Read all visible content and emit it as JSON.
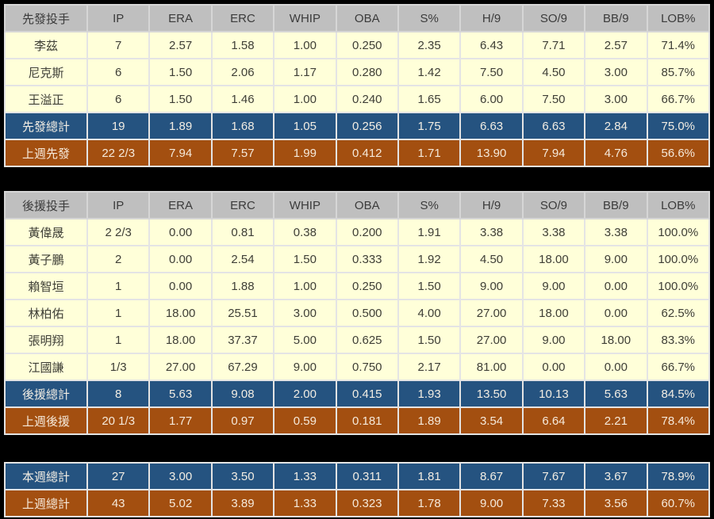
{
  "colors": {
    "page_background": "#000000",
    "header_background": "#bfbfbf",
    "row_background": "#ffffd9",
    "total_blue": "#255380",
    "total_brown": "#a34f10",
    "grid_line": "#e4e4e4"
  },
  "columns": [
    "IP",
    "ERA",
    "ERC",
    "WHIP",
    "OBA",
    "S%",
    "H/9",
    "SO/9",
    "BB/9",
    "LOB%"
  ],
  "tables": [
    {
      "name": "starters-table",
      "header_label": "先發投手",
      "has_header": true,
      "rows": [
        {
          "label": "李茲",
          "style": "normal",
          "values": [
            "7",
            "2.57",
            "1.58",
            "1.00",
            "0.250",
            "2.35",
            "6.43",
            "7.71",
            "2.57",
            "71.4%"
          ]
        },
        {
          "label": "尼克斯",
          "style": "normal",
          "values": [
            "6",
            "1.50",
            "2.06",
            "1.17",
            "0.280",
            "1.42",
            "7.50",
            "4.50",
            "3.00",
            "85.7%"
          ]
        },
        {
          "label": "王溢正",
          "style": "normal",
          "values": [
            "6",
            "1.50",
            "1.46",
            "1.00",
            "0.240",
            "1.65",
            "6.00",
            "7.50",
            "3.00",
            "66.7%"
          ]
        },
        {
          "label": "先發總計",
          "style": "total-blue",
          "values": [
            "19",
            "1.89",
            "1.68",
            "1.05",
            "0.256",
            "1.75",
            "6.63",
            "6.63",
            "2.84",
            "75.0%"
          ]
        },
        {
          "label": "上週先發",
          "style": "total-brown",
          "values": [
            "22 2/3",
            "7.94",
            "7.57",
            "1.99",
            "0.412",
            "1.71",
            "13.90",
            "7.94",
            "4.76",
            "56.6%"
          ]
        }
      ]
    },
    {
      "name": "relievers-table",
      "header_label": "後援投手",
      "has_header": true,
      "rows": [
        {
          "label": "黃偉晟",
          "style": "normal",
          "values": [
            "2 2/3",
            "0.00",
            "0.81",
            "0.38",
            "0.200",
            "1.91",
            "3.38",
            "3.38",
            "3.38",
            "100.0%"
          ]
        },
        {
          "label": "黃子鵬",
          "style": "normal",
          "values": [
            "2",
            "0.00",
            "2.54",
            "1.50",
            "0.333",
            "1.92",
            "4.50",
            "18.00",
            "9.00",
            "100.0%"
          ]
        },
        {
          "label": "賴智垣",
          "style": "normal",
          "values": [
            "1",
            "0.00",
            "1.88",
            "1.00",
            "0.250",
            "1.50",
            "9.00",
            "9.00",
            "0.00",
            "100.0%"
          ]
        },
        {
          "label": "林柏佑",
          "style": "normal",
          "values": [
            "1",
            "18.00",
            "25.51",
            "3.00",
            "0.500",
            "4.00",
            "27.00",
            "18.00",
            "0.00",
            "62.5%"
          ]
        },
        {
          "label": "張明翔",
          "style": "normal",
          "values": [
            "1",
            "18.00",
            "37.37",
            "5.00",
            "0.625",
            "1.50",
            "27.00",
            "9.00",
            "18.00",
            "83.3%"
          ]
        },
        {
          "label": "江國謙",
          "style": "normal",
          "values": [
            "1/3",
            "27.00",
            "67.29",
            "9.00",
            "0.750",
            "2.17",
            "81.00",
            "0.00",
            "0.00",
            "66.7%"
          ]
        },
        {
          "label": "後援總計",
          "style": "total-blue",
          "values": [
            "8",
            "5.63",
            "9.08",
            "2.00",
            "0.415",
            "1.93",
            "13.50",
            "10.13",
            "5.63",
            "84.5%"
          ]
        },
        {
          "label": "上週後援",
          "style": "total-brown",
          "values": [
            "20 1/3",
            "1.77",
            "0.97",
            "0.59",
            "0.181",
            "1.89",
            "3.54",
            "6.64",
            "2.21",
            "78.4%"
          ]
        }
      ]
    },
    {
      "name": "weekly-summary-table",
      "header_label": "",
      "has_header": false,
      "rows": [
        {
          "label": "本週總計",
          "style": "total-blue",
          "values": [
            "27",
            "3.00",
            "3.50",
            "1.33",
            "0.311",
            "1.81",
            "8.67",
            "7.67",
            "3.67",
            "78.9%"
          ]
        },
        {
          "label": "上週總計",
          "style": "total-brown",
          "values": [
            "43",
            "5.02",
            "3.89",
            "1.33",
            "0.323",
            "1.78",
            "9.00",
            "7.33",
            "3.56",
            "60.7%"
          ]
        }
      ]
    }
  ]
}
